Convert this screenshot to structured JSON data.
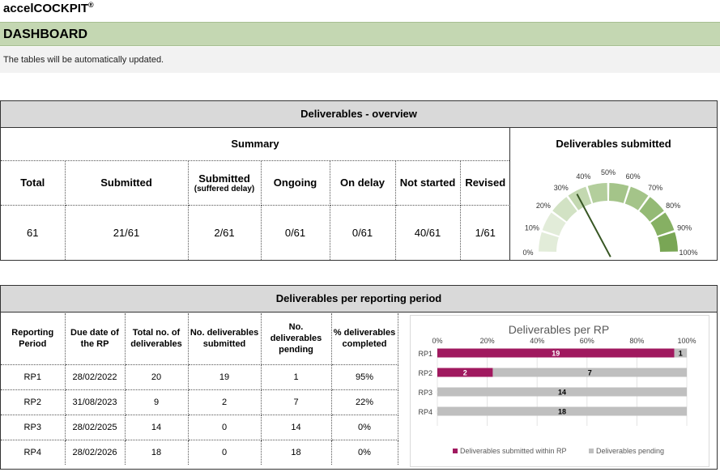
{
  "brand": {
    "name": "accelCOCKPIT",
    "mark": "®"
  },
  "header": {
    "title": "DASHBOARD"
  },
  "info": {
    "text": "The tables will be automatically updated."
  },
  "overview": {
    "title": "Deliverables - overview",
    "summary": {
      "title": "Summary",
      "columns": [
        {
          "label": "Total",
          "sub": ""
        },
        {
          "label": "Submitted",
          "sub": ""
        },
        {
          "label": "Submitted",
          "sub": "(suffered delay)"
        },
        {
          "label": "Ongoing",
          "sub": ""
        },
        {
          "label": "On delay",
          "sub": ""
        },
        {
          "label": "Not started",
          "sub": ""
        },
        {
          "label": "Revised",
          "sub": ""
        }
      ],
      "values": [
        "61",
        "21/61",
        "2/61",
        "0/61",
        "0/61",
        "40/61",
        "1/61"
      ]
    },
    "gauge": {
      "title": "Deliverables submitted",
      "ticks": [
        "0%",
        "10%",
        "20%",
        "30%",
        "40%",
        "50%",
        "60%",
        "70%",
        "80%",
        "90%",
        "100%"
      ],
      "value_fraction": 0.344,
      "colors": [
        "#e2ecd9",
        "#d2e2c4",
        "#c3d8b0",
        "#b3ce9c",
        "#a4c489",
        "#94ba75",
        "#86b063",
        "#79a655"
      ],
      "needle_color": "#375623"
    }
  },
  "per_rp": {
    "title": "Deliverables per reporting period",
    "headers": [
      "Reporting Period",
      "Due date of the RP",
      "Total no. of deliverables",
      "No. deliverables submitted",
      "No. deliverables pending",
      "% deliverables completed"
    ],
    "rows": [
      [
        "RP1",
        "28/02/2022",
        "20",
        "19",
        "1",
        "95%"
      ],
      [
        "RP2",
        "31/08/2023",
        "9",
        "2",
        "7",
        "22%"
      ],
      [
        "RP3",
        "28/02/2025",
        "14",
        "0",
        "14",
        "0%"
      ],
      [
        "RP4",
        "28/02/2026",
        "18",
        "0",
        "18",
        "0%"
      ]
    ]
  },
  "chart_data": {
    "type": "bar",
    "orientation": "horizontal",
    "stacked": "percent",
    "title": "Deliverables per RP",
    "categories": [
      "RP1",
      "RP2",
      "RP3",
      "RP4"
    ],
    "x_ticks": [
      "0%",
      "20%",
      "40%",
      "60%",
      "80%",
      "100%"
    ],
    "xlim": [
      0,
      100
    ],
    "legend_position": "bottom",
    "series": [
      {
        "name": "Deliverables submitted within RP",
        "values": [
          19,
          2,
          0,
          0
        ],
        "color": "#a0195f"
      },
      {
        "name": "Deliverables pending",
        "values": [
          1,
          7,
          14,
          18
        ],
        "color": "#bfbfbf"
      }
    ]
  }
}
